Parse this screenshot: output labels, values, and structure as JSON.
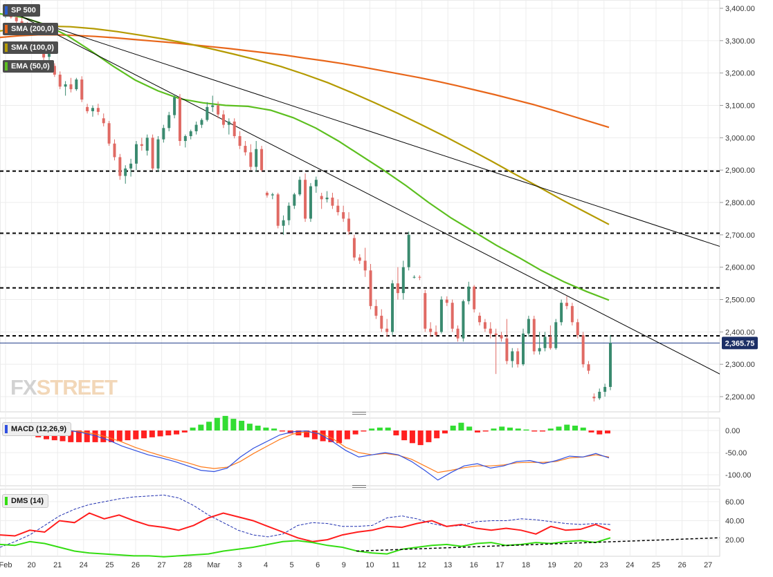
{
  "instrument": {
    "name": "SP 500",
    "last_price": "2,365.75"
  },
  "indicators": {
    "sma200": {
      "label": "SMA (200,0)",
      "color": "#e8661a"
    },
    "sma100": {
      "label": "SMA (100,0)",
      "color": "#b49a00"
    },
    "ema50": {
      "label": "EMA (50,0)",
      "color": "#5cbf1f"
    },
    "macd": {
      "label": "MACD (12,26,9)",
      "line_color": "#2f4fe0",
      "signal_color": "#ff7a1a",
      "hist_pos_color": "#33dd33",
      "hist_neg_color": "#ff2020"
    },
    "dms": {
      "label": "DMS (14)",
      "plus_color": "#33dd11",
      "minus_color": "#ff1c1c",
      "adx_color": "#1f2fb0"
    }
  },
  "watermark": {
    "part1": "FX",
    "part2": "STREET"
  },
  "colors": {
    "up": "#3a8a6f",
    "down": "#e06a64",
    "grid": "#ececec",
    "trend": "#000000"
  },
  "chart_data": {
    "type": "candlestick",
    "x_labels": [
      "Feb",
      "20",
      "21",
      "24",
      "25",
      "26",
      "27",
      "28",
      "Mar",
      "3",
      "4",
      "5",
      "6",
      "9",
      "10",
      "11",
      "12",
      "13",
      "16",
      "17",
      "18",
      "19",
      "20",
      "23",
      "24",
      "25",
      "26",
      "27"
    ],
    "price_axis": {
      "ticks": [
        "3,400.00",
        "3,300.00",
        "3,200.00",
        "3,100.00",
        "3,000.00",
        "2,900.00",
        "2,800.00",
        "2,700.00",
        "2,600.00",
        "2,500.00",
        "2,400.00",
        "2,300.00",
        "2,200.00"
      ],
      "range": [
        2160,
        3425
      ]
    },
    "horizontal_levels": [
      2897,
      2705,
      2536,
      2388
    ],
    "last_price_line": 2365.75,
    "candles_4h": [
      {
        "o": 3380,
        "h": 3393,
        "l": 3370,
        "c": 3386
      },
      {
        "o": 3385,
        "h": 3392,
        "l": 3368,
        "c": 3372
      },
      {
        "o": 3372,
        "h": 3380,
        "l": 3352,
        "c": 3360
      },
      {
        "o": 3360,
        "h": 3370,
        "l": 3340,
        "c": 3348
      },
      {
        "o": 3348,
        "h": 3358,
        "l": 3330,
        "c": 3340
      },
      {
        "o": 3290,
        "h": 3298,
        "l": 3275,
        "c": 3282
      },
      {
        "o": 3282,
        "h": 3290,
        "l": 3262,
        "c": 3270
      },
      {
        "o": 3270,
        "h": 3278,
        "l": 3240,
        "c": 3248
      },
      {
        "o": 3250,
        "h": 3270,
        "l": 3235,
        "c": 3262
      },
      {
        "o": 3222,
        "h": 3230,
        "l": 3188,
        "c": 3195
      },
      {
        "o": 3195,
        "h": 3205,
        "l": 3150,
        "c": 3158
      },
      {
        "o": 3158,
        "h": 3175,
        "l": 3130,
        "c": 3165
      },
      {
        "o": 3165,
        "h": 3185,
        "l": 3140,
        "c": 3150
      },
      {
        "o": 3150,
        "h": 3185,
        "l": 3145,
        "c": 3180
      },
      {
        "o": 3180,
        "h": 3190,
        "l": 3110,
        "c": 3118
      },
      {
        "o": 3095,
        "h": 3105,
        "l": 3075,
        "c": 3082
      },
      {
        "o": 3082,
        "h": 3100,
        "l": 3065,
        "c": 3092
      },
      {
        "o": 3092,
        "h": 3105,
        "l": 3070,
        "c": 3080
      },
      {
        "o": 3060,
        "h": 3075,
        "l": 3035,
        "c": 3045
      },
      {
        "o": 3045,
        "h": 3052,
        "l": 2975,
        "c": 2982
      },
      {
        "o": 2982,
        "h": 2995,
        "l": 2930,
        "c": 2940
      },
      {
        "o": 2940,
        "h": 2950,
        "l": 2870,
        "c": 2882
      },
      {
        "o": 2882,
        "h": 2915,
        "l": 2858,
        "c": 2905
      },
      {
        "o": 2905,
        "h": 2935,
        "l": 2880,
        "c": 2920
      },
      {
        "o": 2920,
        "h": 2990,
        "l": 2900,
        "c": 2980
      },
      {
        "o": 2980,
        "h": 3000,
        "l": 2960,
        "c": 2975
      },
      {
        "o": 2960,
        "h": 3010,
        "l": 2945,
        "c": 3000
      },
      {
        "o": 3000,
        "h": 3010,
        "l": 2900,
        "c": 2905
      },
      {
        "o": 2905,
        "h": 3005,
        "l": 2895,
        "c": 2995
      },
      {
        "o": 2995,
        "h": 3040,
        "l": 2985,
        "c": 3030
      },
      {
        "o": 3030,
        "h": 3080,
        "l": 3020,
        "c": 3070
      },
      {
        "o": 3070,
        "h": 3133,
        "l": 3060,
        "c": 3125
      },
      {
        "o": 3125,
        "h": 3135,
        "l": 2975,
        "c": 2990
      },
      {
        "o": 2990,
        "h": 3010,
        "l": 2970,
        "c": 3005
      },
      {
        "o": 3005,
        "h": 3025,
        "l": 2995,
        "c": 3020
      },
      {
        "o": 3020,
        "h": 3050,
        "l": 3010,
        "c": 3040
      },
      {
        "o": 3040,
        "h": 3060,
        "l": 3030,
        "c": 3055
      },
      {
        "o": 3055,
        "h": 3110,
        "l": 3050,
        "c": 3095
      },
      {
        "o": 3095,
        "h": 3130,
        "l": 3080,
        "c": 3100
      },
      {
        "o": 3100,
        "h": 3112,
        "l": 3060,
        "c": 3072
      },
      {
        "o": 3072,
        "h": 3085,
        "l": 3030,
        "c": 3040
      },
      {
        "o": 3040,
        "h": 3060,
        "l": 3010,
        "c": 3050
      },
      {
        "o": 3050,
        "h": 3060,
        "l": 2998,
        "c": 3005
      },
      {
        "o": 3005,
        "h": 3020,
        "l": 2965,
        "c": 2975
      },
      {
        "o": 2975,
        "h": 2990,
        "l": 2945,
        "c": 2955
      },
      {
        "o": 2955,
        "h": 2980,
        "l": 2900,
        "c": 2910
      },
      {
        "o": 2910,
        "h": 2990,
        "l": 2895,
        "c": 2965
      },
      {
        "o": 2965,
        "h": 2975,
        "l": 2895,
        "c": 2900
      },
      {
        "o": 2830,
        "h": 2835,
        "l": 2815,
        "c": 2822
      },
      {
        "o": 2822,
        "h": 2830,
        "l": 2810,
        "c": 2825
      },
      {
        "o": 2825,
        "h": 2830,
        "l": 2720,
        "c": 2728
      },
      {
        "o": 2728,
        "h": 2760,
        "l": 2700,
        "c": 2745
      },
      {
        "o": 2745,
        "h": 2800,
        "l": 2730,
        "c": 2790
      },
      {
        "o": 2790,
        "h": 2830,
        "l": 2780,
        "c": 2825
      },
      {
        "o": 2825,
        "h": 2880,
        "l": 2820,
        "c": 2870
      },
      {
        "o": 2870,
        "h": 2890,
        "l": 2740,
        "c": 2750
      },
      {
        "o": 2750,
        "h": 2860,
        "l": 2740,
        "c": 2850
      },
      {
        "o": 2850,
        "h": 2880,
        "l": 2830,
        "c": 2870
      },
      {
        "o": 2820,
        "h": 2830,
        "l": 2780,
        "c": 2810
      },
      {
        "o": 2810,
        "h": 2835,
        "l": 2800,
        "c": 2815
      },
      {
        "o": 2815,
        "h": 2830,
        "l": 2780,
        "c": 2790
      },
      {
        "o": 2790,
        "h": 2810,
        "l": 2760,
        "c": 2770
      },
      {
        "o": 2770,
        "h": 2790,
        "l": 2740,
        "c": 2750
      },
      {
        "o": 2750,
        "h": 2770,
        "l": 2700,
        "c": 2710
      },
      {
        "o": 2690,
        "h": 2700,
        "l": 2620,
        "c": 2630
      },
      {
        "o": 2630,
        "h": 2640,
        "l": 2610,
        "c": 2620
      },
      {
        "o": 2620,
        "h": 2660,
        "l": 2570,
        "c": 2590
      },
      {
        "o": 2590,
        "h": 2610,
        "l": 2470,
        "c": 2480
      },
      {
        "o": 2480,
        "h": 2500,
        "l": 2440,
        "c": 2450
      },
      {
        "o": 2450,
        "h": 2470,
        "l": 2400,
        "c": 2410
      },
      {
        "o": 2410,
        "h": 2440,
        "l": 2385,
        "c": 2400
      },
      {
        "o": 2400,
        "h": 2560,
        "l": 2390,
        "c": 2550
      },
      {
        "o": 2550,
        "h": 2600,
        "l": 2500,
        "c": 2520
      },
      {
        "o": 2520,
        "h": 2620,
        "l": 2500,
        "c": 2600
      },
      {
        "o": 2600,
        "h": 2710,
        "l": 2590,
        "c": 2700
      },
      {
        "o": 2570,
        "h": 2575,
        "l": 2565,
        "c": 2570
      },
      {
        "o": 2570,
        "h": 2575,
        "l": 2560,
        "c": 2568
      },
      {
        "o": 2520,
        "h": 2530,
        "l": 2400,
        "c": 2410
      },
      {
        "o": 2410,
        "h": 2430,
        "l": 2385,
        "c": 2400
      },
      {
        "o": 2400,
        "h": 2420,
        "l": 2385,
        "c": 2390
      },
      {
        "o": 2400,
        "h": 2510,
        "l": 2395,
        "c": 2500
      },
      {
        "o": 2500,
        "h": 2510,
        "l": 2480,
        "c": 2490
      },
      {
        "o": 2490,
        "h": 2500,
        "l": 2400,
        "c": 2410
      },
      {
        "o": 2410,
        "h": 2420,
        "l": 2370,
        "c": 2380
      },
      {
        "o": 2380,
        "h": 2500,
        "l": 2370,
        "c": 2495
      },
      {
        "o": 2495,
        "h": 2555,
        "l": 2485,
        "c": 2540
      },
      {
        "o": 2540,
        "h": 2545,
        "l": 2460,
        "c": 2470
      },
      {
        "o": 2450,
        "h": 2460,
        "l": 2420,
        "c": 2430
      },
      {
        "o": 2430,
        "h": 2440,
        "l": 2400,
        "c": 2410
      },
      {
        "o": 2410,
        "h": 2430,
        "l": 2380,
        "c": 2395
      },
      {
        "o": 2395,
        "h": 2410,
        "l": 2270,
        "c": 2390
      },
      {
        "o": 2390,
        "h": 2400,
        "l": 2370,
        "c": 2380
      },
      {
        "o": 2380,
        "h": 2440,
        "l": 2300,
        "c": 2310
      },
      {
        "o": 2310,
        "h": 2350,
        "l": 2290,
        "c": 2340
      },
      {
        "o": 2340,
        "h": 2350,
        "l": 2290,
        "c": 2300
      },
      {
        "o": 2300,
        "h": 2410,
        "l": 2295,
        "c": 2395
      },
      {
        "o": 2395,
        "h": 2450,
        "l": 2385,
        "c": 2440
      },
      {
        "o": 2440,
        "h": 2450,
        "l": 2330,
        "c": 2340
      },
      {
        "o": 2340,
        "h": 2400,
        "l": 2330,
        "c": 2350
      },
      {
        "o": 2350,
        "h": 2400,
        "l": 2340,
        "c": 2385
      },
      {
        "o": 2385,
        "h": 2420,
        "l": 2345,
        "c": 2350
      },
      {
        "o": 2350,
        "h": 2440,
        "l": 2345,
        "c": 2430
      },
      {
        "o": 2430,
        "h": 2500,
        "l": 2420,
        "c": 2490
      },
      {
        "o": 2490,
        "h": 2510,
        "l": 2470,
        "c": 2480
      },
      {
        "o": 2480,
        "h": 2490,
        "l": 2420,
        "c": 2430
      },
      {
        "o": 2430,
        "h": 2440,
        "l": 2380,
        "c": 2390
      },
      {
        "o": 2390,
        "h": 2400,
        "l": 2290,
        "c": 2300
      },
      {
        "o": 2300,
        "h": 2310,
        "l": 2270,
        "c": 2280
      },
      {
        "o": 2200,
        "h": 2210,
        "l": 2185,
        "c": 2195
      },
      {
        "o": 2195,
        "h": 2225,
        "l": 2190,
        "c": 2215
      },
      {
        "o": 2215,
        "h": 2240,
        "l": 2200,
        "c": 2230
      },
      {
        "o": 2230,
        "h": 2390,
        "l": 2220,
        "c": 2366
      }
    ],
    "sma200": [
      3310,
      3315,
      3318,
      3318,
      3316,
      3313,
      3309,
      3304,
      3299,
      3294,
      3288,
      3282,
      3276,
      3269,
      3262,
      3255,
      3246,
      3238,
      3229,
      3219,
      3208,
      3197,
      3186,
      3174,
      3161,
      3147,
      3133,
      3118,
      3103,
      3086,
      3068,
      3050,
      3032
    ],
    "sma100": [
      3330,
      3340,
      3345,
      3343,
      3337,
      3328,
      3317,
      3305,
      3291,
      3275,
      3258,
      3240,
      3220,
      3196,
      3170,
      3140,
      3108,
      3075,
      3040,
      3004,
      2966,
      2927,
      2887,
      2848,
      2808,
      2770,
      2732
    ],
    "ema50": [
      3383,
      3372,
      3350,
      3315,
      3270,
      3222,
      3178,
      3145,
      3120,
      3108,
      3100,
      3097,
      3085,
      3062,
      3030,
      2990,
      2945,
      2900,
      2852,
      2800,
      2752,
      2710,
      2668,
      2630,
      2590,
      2555,
      2525,
      2498
    ],
    "trendlines": [
      {
        "from": [
          0,
          3390
        ],
        "to": [
          88.4,
          2655
        ]
      },
      {
        "from": [
          0,
          3400
        ],
        "to": [
          89.6,
          2240
        ]
      }
    ],
    "macd": {
      "axis_ticks": [
        "0.00",
        "-50.00",
        "-100.00"
      ],
      "range": [
        -112,
        10
      ],
      "line": [
        0,
        -5,
        -12,
        -22,
        -35,
        -45,
        -55,
        -62,
        -70,
        -80,
        -90,
        -93,
        -85,
        -60,
        -40,
        -25,
        -10,
        -3,
        -1,
        -8,
        -25,
        -45,
        -60,
        -55,
        -50,
        -55,
        -70,
        -90,
        -112,
        -95,
        -80,
        -75,
        -85,
        -80,
        -70,
        -68,
        -75,
        -68,
        -58,
        -60,
        -52,
        -62
      ],
      "signal": [
        0,
        -3,
        -8,
        -16,
        -26,
        -38,
        -48,
        -57,
        -65,
        -73,
        -82,
        -86,
        -83,
        -70,
        -52,
        -36,
        -20,
        -8,
        -3,
        -6,
        -18,
        -38,
        -50,
        -55,
        -52,
        -56,
        -65,
        -80,
        -95,
        -90,
        -84,
        -80,
        -80,
        -78,
        -73,
        -72,
        -72,
        -70,
        -62,
        -60,
        -55,
        -60
      ],
      "histogram": [
        -2,
        -3,
        -5,
        -7,
        -9,
        -10,
        -11,
        -12,
        -12,
        -12,
        -12,
        -12,
        -12,
        -11,
        -10,
        -9,
        -8,
        -7,
        -6,
        -5,
        -4,
        -2,
        3,
        6,
        9,
        13,
        15,
        12,
        10,
        7,
        5,
        3,
        2,
        -1,
        -3,
        -5,
        -7,
        -9,
        -11,
        -12,
        -13,
        -9,
        -4,
        -1,
        2,
        3,
        3,
        -5,
        -10,
        -13,
        -15,
        -12,
        -8,
        -3,
        5,
        8,
        4,
        -2,
        -1,
        2,
        4,
        3,
        2,
        1,
        -1,
        -1,
        2,
        4,
        6,
        5,
        3,
        -2,
        -4,
        -3
      ]
    },
    "dms": {
      "axis_ticks": [
        "60.00",
        "40.00",
        "20.00"
      ],
      "range": [
        0,
        68
      ],
      "plus_di": [
        15,
        14,
        18,
        16,
        12,
        8,
        6,
        5,
        4,
        3,
        3,
        2,
        3,
        4,
        5,
        8,
        10,
        12,
        15,
        18,
        19,
        17,
        14,
        12,
        8,
        6,
        5,
        10,
        12,
        14,
        15,
        13,
        16,
        17,
        14,
        15,
        17,
        16,
        18,
        19,
        17,
        22
      ],
      "minus_di": [
        25,
        24,
        30,
        28,
        40,
        38,
        48,
        42,
        46,
        40,
        35,
        33,
        30,
        35,
        43,
        48,
        44,
        40,
        34,
        28,
        22,
        18,
        20,
        25,
        28,
        30,
        34,
        33,
        37,
        40,
        34,
        36,
        32,
        30,
        32,
        30,
        26,
        34,
        30,
        31,
        36,
        30
      ],
      "adx": [
        12,
        18,
        25,
        35,
        45,
        52,
        57,
        60,
        63,
        65,
        66,
        67,
        64,
        56,
        46,
        38,
        30,
        25,
        23,
        26,
        35,
        38,
        37,
        34,
        34,
        35,
        43,
        45,
        42,
        37,
        34,
        35,
        39,
        40,
        40,
        42,
        41,
        39,
        37,
        36,
        37,
        36
      ],
      "trendline": {
        "from": [
          13.2,
          8
        ],
        "to": [
          28,
          22
        ]
      }
    }
  }
}
